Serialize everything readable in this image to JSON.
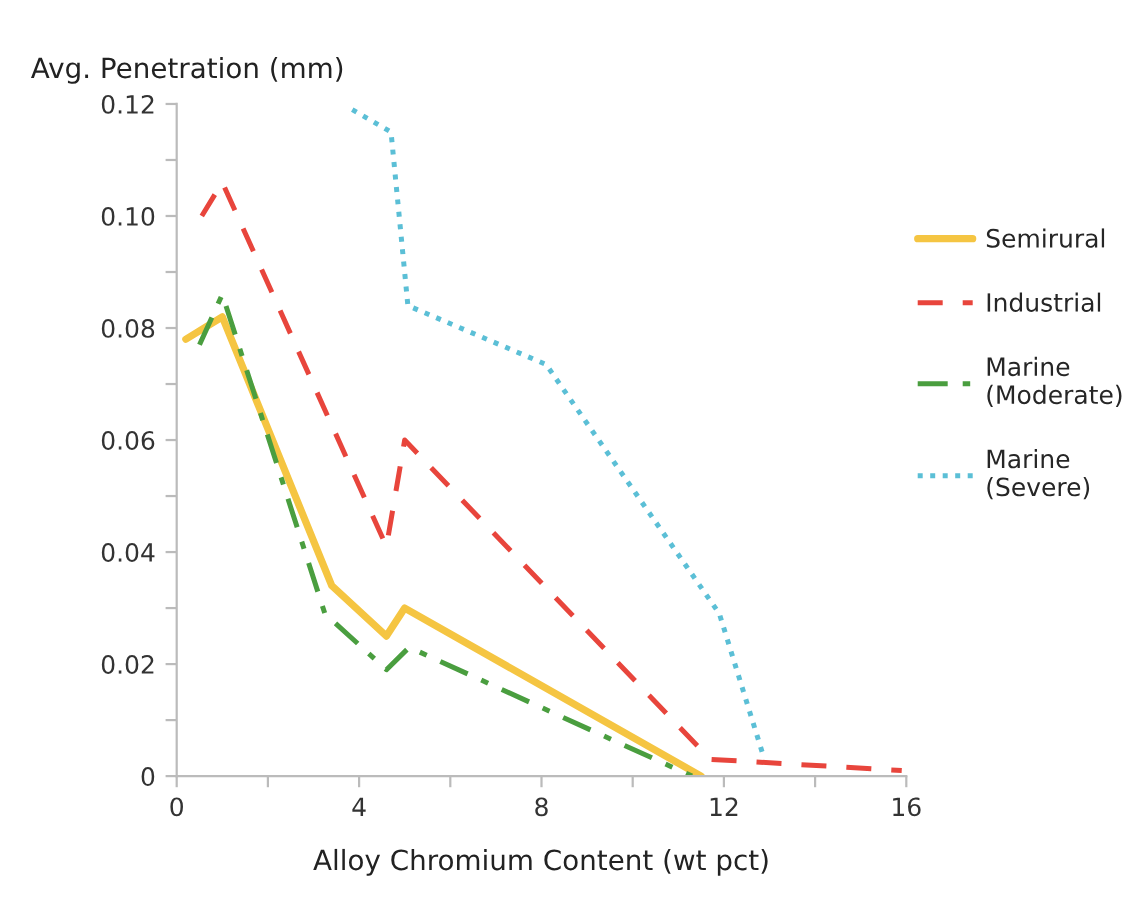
{
  "chart_data": {
    "type": "line",
    "xlabel": "Alloy Chromium Content (wt pct)",
    "ylabel": "Avg. Penetration (mm)",
    "xlim": [
      0,
      16
    ],
    "xticks": [
      0,
      {
        "value": 2,
        "label": null
      },
      4,
      {
        "value": 6,
        "label": null
      },
      8,
      {
        "value": 10,
        "label": null
      },
      12,
      {
        "value": 14,
        "label": null
      },
      16
    ],
    "ylim": [
      0,
      0.12
    ],
    "yticks": [
      {
        "value": 0,
        "label": "0"
      },
      {
        "value": 0.01,
        "label": null
      },
      {
        "value": 0.02,
        "label": "0.02"
      },
      {
        "value": 0.03,
        "label": null
      },
      {
        "value": 0.04,
        "label": "0.04"
      },
      {
        "value": 0.05,
        "label": null
      },
      {
        "value": 0.06,
        "label": "0.06"
      },
      {
        "value": 0.07,
        "label": null
      },
      {
        "value": 0.08,
        "label": "0.08"
      },
      {
        "value": 0.09,
        "label": null
      },
      {
        "value": 0.1,
        "label": "0.10"
      },
      {
        "value": 0.11,
        "label": null
      },
      {
        "value": 0.12,
        "label": "0.12"
      }
    ],
    "grid": false,
    "legend": "right",
    "marker": "none",
    "series": [
      {
        "name": "Semirural",
        "color": "#f5c542",
        "line_style": "solid",
        "x": [
          0.2,
          1.0,
          3.4,
          4.6,
          5.0,
          11.5
        ],
        "values": [
          0.078,
          0.082,
          0.034,
          0.025,
          0.03,
          0
        ]
      },
      {
        "name": "Industrial",
        "color": "#e8453c",
        "line_style": "dashed",
        "x": [
          0.55,
          1.0,
          4.6,
          5.0,
          11.7,
          15.9
        ],
        "values": [
          0.1,
          0.106,
          0.041,
          0.06,
          0.003,
          0.001
        ]
      },
      {
        "name": "Marine (Moderate)",
        "color": "#4a9e3f",
        "line_style": "dashdot",
        "x": [
          0.5,
          1.0,
          3.25,
          4.6,
          5.1,
          11.3
        ],
        "values": [
          0.077,
          0.086,
          0.029,
          0.019,
          0.023,
          0
        ]
      },
      {
        "name": "Marine (Severe)",
        "color": "#5bbfd6",
        "line_style": "dotted",
        "x": [
          3.85,
          4.7,
          5.07,
          8.1,
          11.9,
          12.85
        ],
        "values": [
          0.119,
          0.115,
          0.084,
          0.0735,
          0.029,
          0.004
        ]
      }
    ]
  }
}
